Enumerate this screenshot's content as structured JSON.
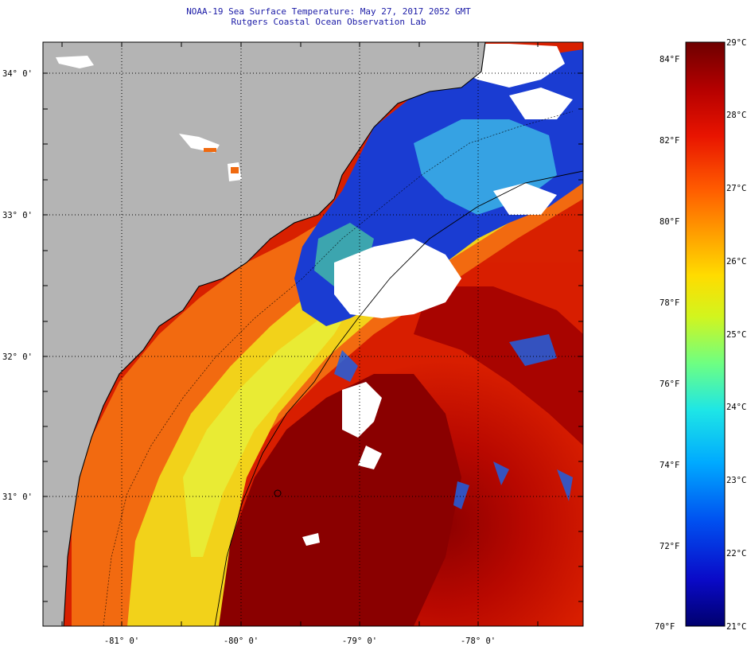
{
  "header": {
    "title": "NOAA-19 Sea Surface Temperature:  May 27, 2017 2052 GMT",
    "subtitle": "Rutgers Coastal Ocean Observation Lab"
  },
  "map": {
    "lat_labels": [
      "34° 0'",
      "33° 0'",
      "32° 0'",
      "31° 0'"
    ],
    "lon_labels": [
      "-81° 0'",
      "-80° 0'",
      "-79° 0'",
      "-78° 0'"
    ],
    "lat_range": [
      30.15,
      34.25
    ],
    "lon_range": [
      -81.65,
      -77.2
    ],
    "land_color": "#b4b4b4",
    "cloud_color": "#ffffff"
  },
  "colorbar": {
    "fahrenheit": [
      "84°F",
      "82°F",
      "80°F",
      "78°F",
      "76°F",
      "74°F",
      "72°F",
      "70°F"
    ],
    "celsius": [
      "29°C",
      "28°C",
      "27°C",
      "26°C",
      "25°C",
      "24°C",
      "23°C",
      "22°C",
      "21°C"
    ],
    "colors": [
      "#7a0000",
      "#c30000",
      "#ff2000",
      "#ff6a00",
      "#ffaa00",
      "#ffe400",
      "#c8ff38",
      "#6eff8a",
      "#1ef0e0",
      "#00b4ff",
      "#0064ff",
      "#0a14d2",
      "#00006e"
    ]
  }
}
